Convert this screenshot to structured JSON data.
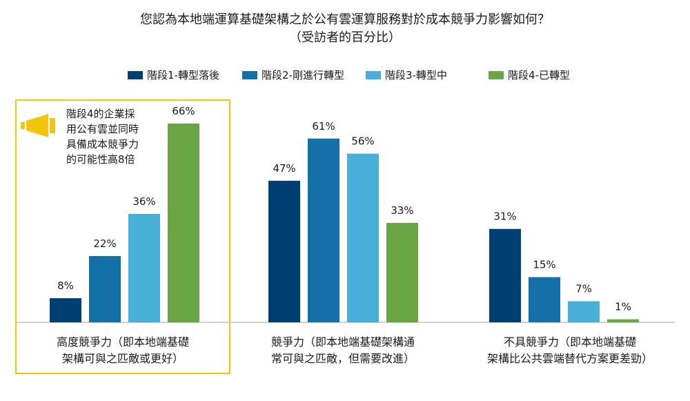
{
  "title": "您認為本地端運算基礎架構之於公有雲運算服務對於成本競爭力影響如何？",
  "subtitle": "（受訪者的百分比）",
  "colors": {
    "stage1": "#003f72",
    "stage2": "#1470a8",
    "stage3": "#48b0d8",
    "stage4": "#6aa544",
    "highlight": "#f2c410",
    "baseline": "#bfbfbf"
  },
  "callout": {
    "icon": "megaphone-icon",
    "lines": [
      "階段4的企業採",
      "用公有雲並同時",
      "具備成本競爭力",
      "的可能性高8倍"
    ]
  },
  "chart_data": {
    "type": "bar",
    "title": "您認為本地端運算基礎架構之於公有雲運算服務對於成本競爭力影響如何？",
    "subtitle": "（受訪者的百分比）",
    "categories": [
      [
        "高度競爭力（即本地端基礎",
        "架構可與之匹敵或更好）"
      ],
      [
        "競爭力（即本地端基礎架構通",
        "常可與之匹敵，但需要改進）"
      ],
      [
        "不具競爭力（即本地端基礎",
        "架構比公共雲端替代方案更差勁）"
      ]
    ],
    "series": [
      {
        "name": "階段1-轉型落後",
        "values": [
          8,
          47,
          31
        ],
        "labels": [
          "8%",
          "47%",
          "31%"
        ]
      },
      {
        "name": "階段2-剛進行轉型",
        "values": [
          22,
          61,
          15
        ],
        "labels": [
          "22%",
          "61%",
          "15%"
        ]
      },
      {
        "name": "階段3-轉型中",
        "values": [
          36,
          56,
          7
        ],
        "labels": [
          "36%",
          "56%",
          "7%"
        ]
      },
      {
        "name": "階段4-已轉型",
        "values": [
          66,
          33,
          1
        ],
        "labels": [
          "66%",
          "33%",
          "1%"
        ]
      }
    ],
    "unit": "%",
    "ylim": [
      0,
      66
    ],
    "grid": false,
    "legend_position": "top"
  }
}
